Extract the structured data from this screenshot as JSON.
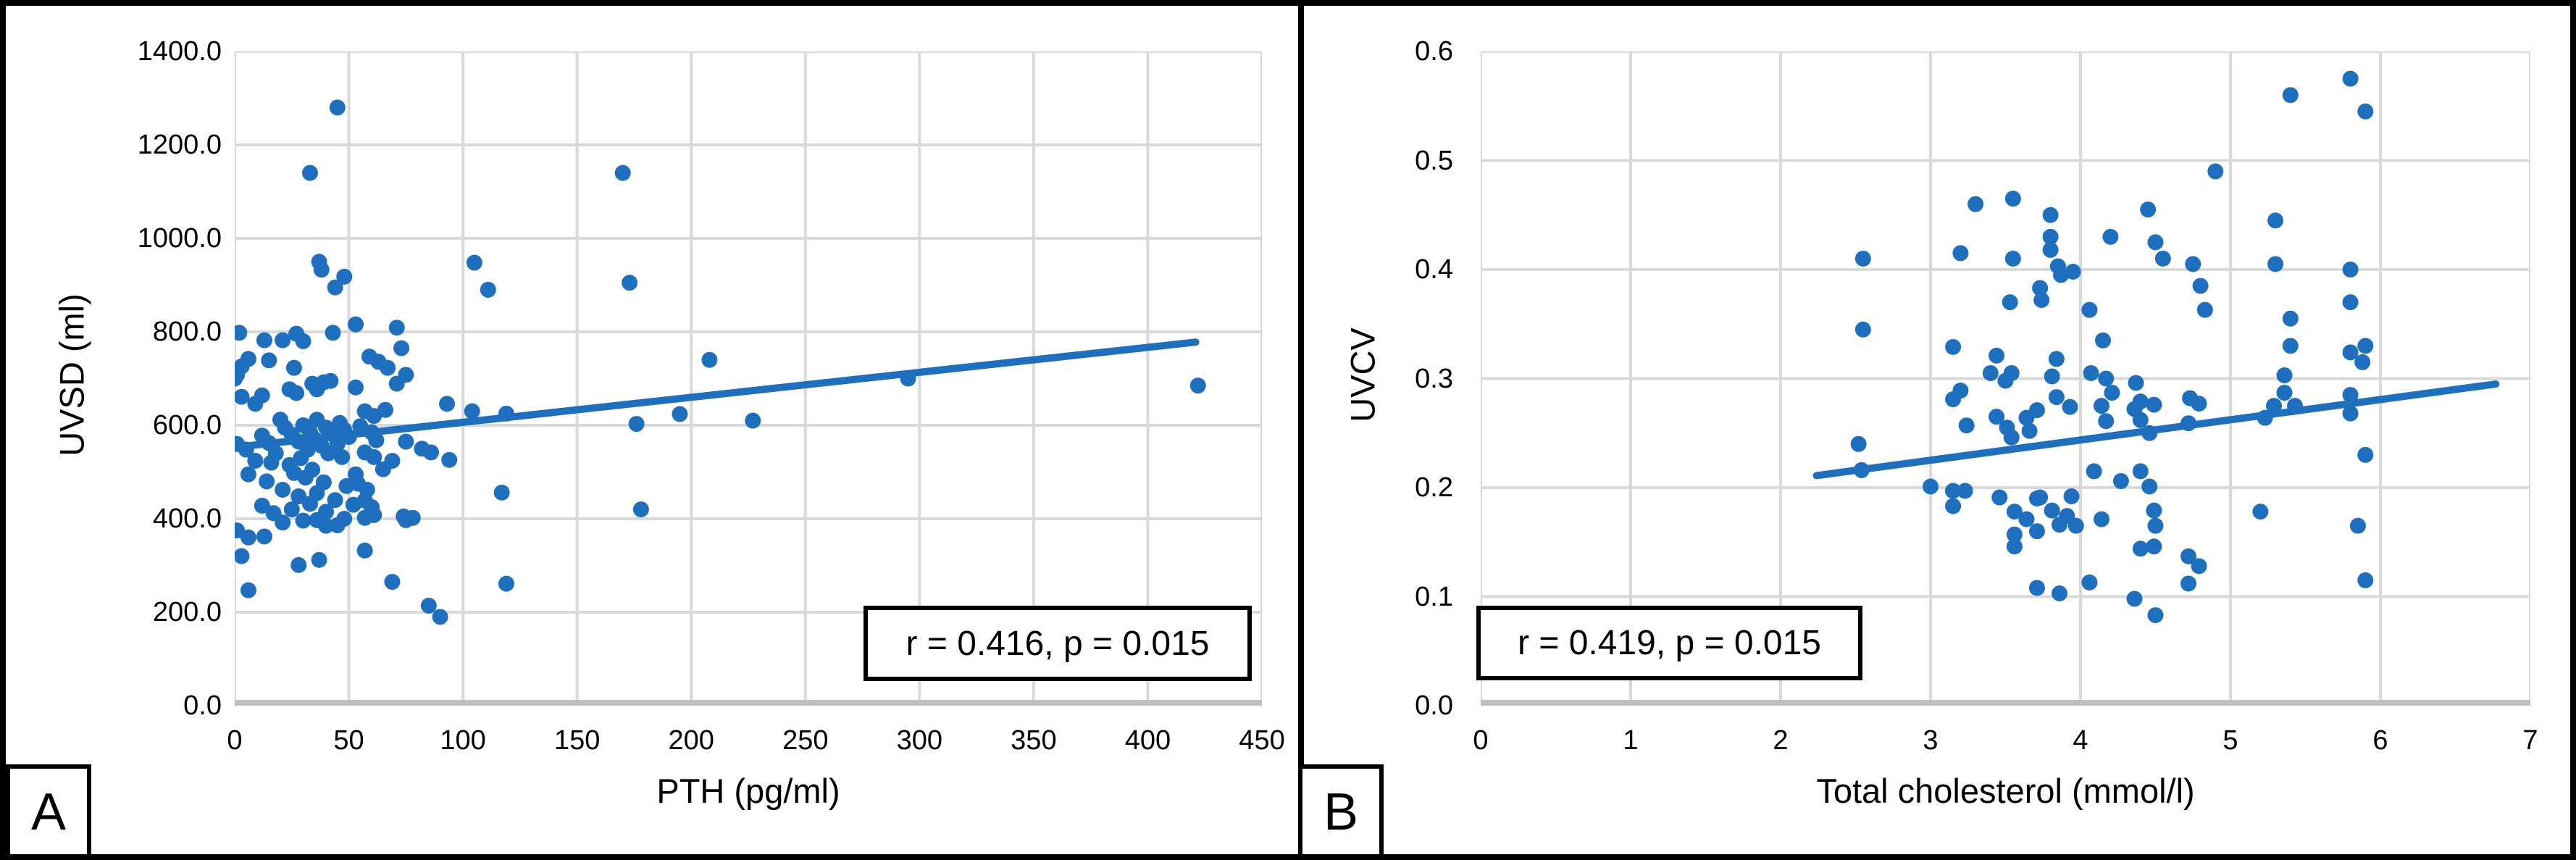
{
  "figure": {
    "background": "#ffffff",
    "border_color": "#000000",
    "point_color": "#1f6fbf",
    "trend_color": "#1f6fbf",
    "grid_color": "#d9d9d9",
    "axis_color": "#bfbfbf"
  },
  "chart_data": [
    {
      "type": "scatter",
      "panel_label": "A",
      "title": "",
      "xlabel": "PTH (pg/ml)",
      "ylabel": "UVSD (ml)",
      "annotation": "r = 0.416, p = 0.015",
      "xlim": [
        0,
        450
      ],
      "ylim": [
        0,
        1400
      ],
      "grid": true,
      "xticks": {
        "values": [
          0,
          50,
          100,
          150,
          200,
          250,
          300,
          350,
          400,
          450
        ],
        "labels": [
          "0",
          "50",
          "100",
          "150",
          "200",
          "250",
          "300",
          "350",
          "400",
          "450"
        ]
      },
      "yticks": {
        "values": [
          1400,
          1200,
          1000,
          800,
          600,
          400,
          200,
          0
        ],
        "labels": [
          "1400.0",
          "1200.0",
          "1000.0",
          "800.0",
          "600.0",
          "400.0",
          "200.0",
          "0.0"
        ]
      },
      "trend": {
        "x1": 0,
        "y1": 553,
        "x2": 421,
        "y2": 778
      },
      "points": [
        [
          45,
          1280
        ],
        [
          33,
          1140
        ],
        [
          170,
          1140
        ],
        [
          37,
          950
        ],
        [
          38,
          933
        ],
        [
          105,
          948
        ],
        [
          48,
          918
        ],
        [
          44,
          895
        ],
        [
          111,
          890
        ],
        [
          173,
          905
        ],
        [
          53,
          816
        ],
        [
          71,
          809
        ],
        [
          2,
          798
        ],
        [
          43,
          798
        ],
        [
          27,
          796
        ],
        [
          13,
          782
        ],
        [
          21,
          782
        ],
        [
          30,
          780
        ],
        [
          73,
          765
        ],
        [
          59,
          747
        ],
        [
          63,
          736
        ],
        [
          15,
          739
        ],
        [
          6,
          742
        ],
        [
          26,
          723
        ],
        [
          67,
          723
        ],
        [
          3,
          726
        ],
        [
          75,
          708
        ],
        [
          1,
          708
        ],
        [
          0,
          700
        ],
        [
          42,
          695
        ],
        [
          39,
          692
        ],
        [
          34,
          689
        ],
        [
          71,
          689
        ],
        [
          24,
          677
        ],
        [
          36,
          677
        ],
        [
          53,
          681
        ],
        [
          27,
          669
        ],
        [
          3,
          661
        ],
        [
          12,
          664
        ],
        [
          9,
          646
        ],
        [
          93,
          646
        ],
        [
          104,
          630
        ],
        [
          119,
          625
        ],
        [
          57,
          630
        ],
        [
          66,
          633
        ],
        [
          61,
          620
        ],
        [
          227,
          610
        ],
        [
          195,
          624
        ],
        [
          176,
          603
        ],
        [
          208,
          740
        ],
        [
          295,
          700
        ],
        [
          422,
          685
        ],
        [
          178,
          420
        ],
        [
          117,
          456
        ],
        [
          20,
          612
        ],
        [
          36,
          612
        ],
        [
          46,
          605
        ],
        [
          30,
          600
        ],
        [
          55,
          598
        ],
        [
          40,
          595
        ],
        [
          22,
          595
        ],
        [
          48,
          590
        ],
        [
          33,
          585
        ],
        [
          60,
          585
        ],
        [
          43,
          580
        ],
        [
          25,
          580
        ],
        [
          12,
          578
        ],
        [
          50,
          575
        ],
        [
          35,
          570
        ],
        [
          62,
          568
        ],
        [
          28,
          565
        ],
        [
          15,
          562
        ],
        [
          1,
          560
        ],
        [
          45,
          560
        ],
        [
          38,
          556
        ],
        [
          5,
          548
        ],
        [
          32,
          548
        ],
        [
          57,
          542
        ],
        [
          41,
          540
        ],
        [
          18,
          540
        ],
        [
          47,
          532
        ],
        [
          61,
          532
        ],
        [
          29,
          530
        ],
        [
          9,
          524
        ],
        [
          69,
          524
        ],
        [
          16,
          520
        ],
        [
          24,
          515
        ],
        [
          34,
          505
        ],
        [
          26,
          498
        ],
        [
          6,
          495
        ],
        [
          53,
          495
        ],
        [
          31,
          488
        ],
        [
          14,
          480
        ],
        [
          39,
          478
        ],
        [
          54,
          475
        ],
        [
          49,
          470
        ],
        [
          21,
          462
        ],
        [
          58,
          462
        ],
        [
          36,
          455
        ],
        [
          28,
          448
        ],
        [
          44,
          440
        ],
        [
          57,
          439
        ],
        [
          33,
          432
        ],
        [
          52,
          430
        ],
        [
          60,
          425
        ],
        [
          12,
          428
        ],
        [
          25,
          420
        ],
        [
          17,
          412
        ],
        [
          40,
          415
        ],
        [
          48,
          400
        ],
        [
          30,
          396
        ],
        [
          75,
          565
        ],
        [
          82,
          550
        ],
        [
          86,
          542
        ],
        [
          94,
          526
        ],
        [
          65,
          506
        ],
        [
          74,
          405
        ],
        [
          61,
          408
        ],
        [
          57,
          402
        ],
        [
          78,
          402
        ],
        [
          36,
          397
        ],
        [
          75,
          397
        ],
        [
          45,
          386
        ],
        [
          40,
          385
        ],
        [
          21,
          392
        ],
        [
          13,
          362
        ],
        [
          6,
          360
        ],
        [
          1,
          375
        ],
        [
          3,
          320
        ],
        [
          28,
          301
        ],
        [
          37,
          312
        ],
        [
          57,
          332
        ],
        [
          69,
          265
        ],
        [
          6,
          247
        ],
        [
          85,
          214
        ],
        [
          90,
          190
        ],
        [
          119,
          261
        ]
      ]
    },
    {
      "type": "scatter",
      "panel_label": "B",
      "title": "",
      "xlabel": "Total cholesterol (mmol/l)",
      "ylabel": "UVCV",
      "annotation": "r = 0.419, p = 0.015",
      "xlim": [
        0,
        7
      ],
      "ylim": [
        0,
        0.6
      ],
      "grid": true,
      "xticks": {
        "values": [
          0,
          1,
          2,
          3,
          4,
          5,
          6,
          7
        ],
        "labels": [
          "0",
          "1",
          "2",
          "3",
          "4",
          "5",
          "6",
          "7"
        ]
      },
      "yticks": {
        "values": [
          0.6,
          0.5,
          0.4,
          0.3,
          0.2,
          0.1,
          0.0
        ],
        "labels": [
          "0.6",
          "0.5",
          "0.4",
          "0.3",
          "0.2",
          "0.1",
          "0.0"
        ]
      },
      "trend": {
        "x1": 2.24,
        "y1": 0.211,
        "x2": 6.77,
        "y2": 0.295
      },
      "points": [
        [
          5.8,
          0.575
        ],
        [
          5.4,
          0.56
        ],
        [
          5.9,
          0.545
        ],
        [
          4.9,
          0.49
        ],
        [
          2.55,
          0.41
        ],
        [
          3.3,
          0.46
        ],
        [
          3.55,
          0.465
        ],
        [
          3.8,
          0.45
        ],
        [
          3.8,
          0.43
        ],
        [
          3.8,
          0.418
        ],
        [
          4.2,
          0.43
        ],
        [
          4.45,
          0.455
        ],
        [
          5.3,
          0.445
        ],
        [
          4.5,
          0.425
        ],
        [
          4.55,
          0.41
        ],
        [
          4.75,
          0.405
        ],
        [
          3.2,
          0.415
        ],
        [
          3.55,
          0.41
        ],
        [
          3.85,
          0.403
        ],
        [
          3.87,
          0.395
        ],
        [
          3.95,
          0.398
        ],
        [
          5.3,
          0.405
        ],
        [
          5.8,
          0.4
        ],
        [
          2.55,
          0.345
        ],
        [
          4.8,
          0.385
        ],
        [
          3.73,
          0.383
        ],
        [
          3.74,
          0.372
        ],
        [
          4.06,
          0.363
        ],
        [
          3.53,
          0.37
        ],
        [
          4.83,
          0.363
        ],
        [
          5.8,
          0.37
        ],
        [
          5.4,
          0.355
        ],
        [
          4.15,
          0.335
        ],
        [
          3.15,
          0.329
        ],
        [
          3.44,
          0.321
        ],
        [
          3.84,
          0.318
        ],
        [
          5.4,
          0.33
        ],
        [
          5.9,
          0.33
        ],
        [
          5.8,
          0.324
        ],
        [
          5.88,
          0.315
        ],
        [
          3.4,
          0.305
        ],
        [
          3.5,
          0.298
        ],
        [
          3.54,
          0.305
        ],
        [
          3.81,
          0.302
        ],
        [
          4.07,
          0.305
        ],
        [
          4.17,
          0.3
        ],
        [
          4.21,
          0.287
        ],
        [
          4.37,
          0.296
        ],
        [
          4.4,
          0.279
        ],
        [
          4.49,
          0.276
        ],
        [
          3.2,
          0.289
        ],
        [
          3.15,
          0.281
        ],
        [
          3.84,
          0.283
        ],
        [
          5.36,
          0.303
        ],
        [
          5.8,
          0.285
        ],
        [
          5.36,
          0.287
        ],
        [
          5.29,
          0.275
        ],
        [
          5.43,
          0.275
        ],
        [
          5.8,
          0.268
        ],
        [
          5.9,
          0.23
        ],
        [
          2.52,
          0.24
        ],
        [
          2.54,
          0.216
        ],
        [
          3.24,
          0.257
        ],
        [
          3.44,
          0.265
        ],
        [
          3.51,
          0.255
        ],
        [
          3.54,
          0.246
        ],
        [
          3.64,
          0.264
        ],
        [
          3.66,
          0.252
        ],
        [
          3.71,
          0.271
        ],
        [
          3.93,
          0.274
        ],
        [
          4.14,
          0.275
        ],
        [
          4.17,
          0.261
        ],
        [
          4.36,
          0.272
        ],
        [
          4.4,
          0.262
        ],
        [
          4.46,
          0.25
        ],
        [
          4.73,
          0.282
        ],
        [
          4.79,
          0.277
        ],
        [
          4.72,
          0.259
        ],
        [
          5.23,
          0.264
        ],
        [
          4.09,
          0.215
        ],
        [
          4.27,
          0.206
        ],
        [
          3.0,
          0.201
        ],
        [
          3.15,
          0.197
        ],
        [
          3.23,
          0.197
        ],
        [
          3.46,
          0.191
        ],
        [
          3.56,
          0.178
        ],
        [
          3.64,
          0.171
        ],
        [
          3.71,
          0.19
        ],
        [
          3.73,
          0.191
        ],
        [
          3.81,
          0.179
        ],
        [
          3.86,
          0.166
        ],
        [
          3.91,
          0.174
        ],
        [
          3.94,
          0.192
        ],
        [
          3.97,
          0.165
        ],
        [
          4.14,
          0.171
        ],
        [
          4.4,
          0.215
        ],
        [
          4.46,
          0.201
        ],
        [
          4.49,
          0.179
        ],
        [
          4.5,
          0.165
        ],
        [
          5.2,
          0.178
        ],
        [
          3.15,
          0.183
        ],
        [
          3.56,
          0.157
        ],
        [
          3.56,
          0.146
        ],
        [
          3.71,
          0.16
        ],
        [
          4.4,
          0.144
        ],
        [
          4.49,
          0.146
        ],
        [
          4.72,
          0.137
        ],
        [
          4.79,
          0.128
        ],
        [
          4.72,
          0.112
        ],
        [
          3.71,
          0.108
        ],
        [
          3.86,
          0.103
        ],
        [
          4.06,
          0.113
        ],
        [
          4.5,
          0.083
        ],
        [
          5.85,
          0.165
        ],
        [
          5.9,
          0.115
        ],
        [
          4.36,
          0.098
        ]
      ]
    }
  ]
}
